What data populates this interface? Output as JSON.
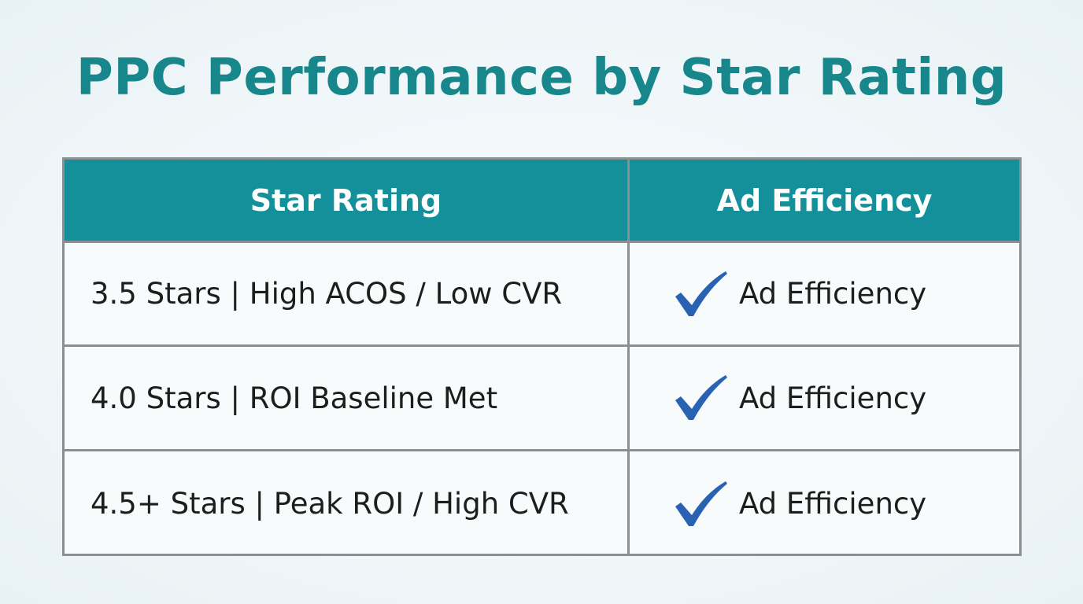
{
  "header": {
    "title": "PPC Performance by Star Rating"
  },
  "table": {
    "columns": [
      "Star Rating",
      "Ad Efficiency"
    ],
    "rows": [
      [
        "3.5 Stars | High ACOS / Low CVR",
        "Ad Efficiency"
      ],
      [
        "4.0 Stars | ROI Baseline Met",
        "Ad Efficiency"
      ],
      [
        "4.5+ Stars | Peak ROI / High CVR",
        "Ad Efficiency"
      ]
    ]
  }
}
